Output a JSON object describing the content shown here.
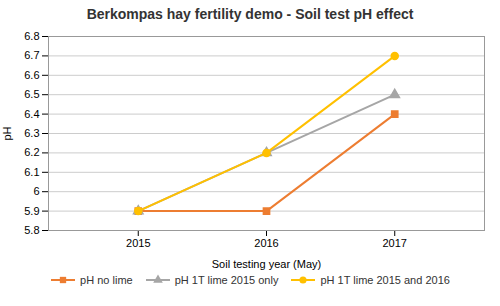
{
  "chart_data": {
    "type": "line",
    "title": "Berkompas hay fertility demo - Soil test pH effect",
    "xlabel": "Soil testing year (May)",
    "ylabel": "pH",
    "x": [
      2015,
      2016,
      2017
    ],
    "series": [
      {
        "name": "pH no lime",
        "color": "#ED7D31",
        "values": [
          5.9,
          5.9,
          6.4
        ],
        "marker": "square",
        "line_style": "solid"
      },
      {
        "name": "pH 1T lime 2015 only",
        "color": "#A6A6A6",
        "values": [
          5.9,
          6.2,
          6.5
        ],
        "marker": "triangle",
        "line_style": "solid"
      },
      {
        "name": "pH 1T lime 2015 and 2016",
        "color": "#FFC000",
        "values": [
          5.9,
          6.2,
          6.7
        ],
        "marker": "circle",
        "line_style": "solid"
      }
    ],
    "xlim": [
      2014.3,
      2017.7
    ],
    "xticks": [
      2015,
      2016,
      2017
    ],
    "ylim": [
      5.8,
      6.8
    ],
    "yticks": [
      5.8,
      5.9,
      6,
      6.1,
      6.2,
      6.3,
      6.4,
      6.5,
      6.6,
      6.7,
      6.8
    ],
    "grid": true,
    "legend": "bottom"
  }
}
